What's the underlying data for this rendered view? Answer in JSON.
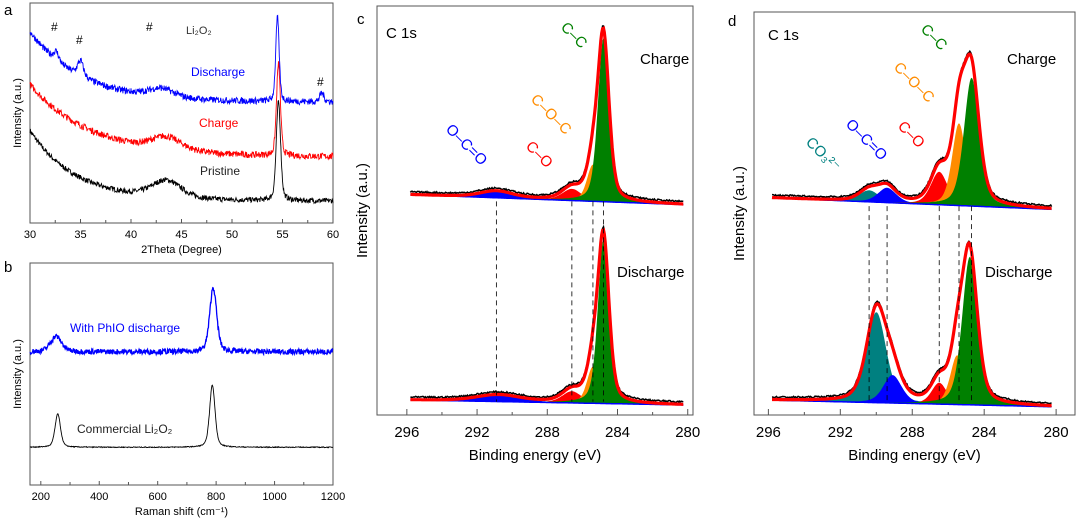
{
  "chart_data": [
    {
      "panel": "a",
      "type": "line",
      "xlabel": "2Theta (Degree)",
      "ylabel": "Intensity (a.u.)",
      "xlim": [
        30,
        60
      ],
      "ylim": [
        0,
        1
      ],
      "xticks": [
        30,
        35,
        40,
        45,
        50,
        55,
        60
      ],
      "grid": false,
      "series": [
        {
          "name": "Pristine",
          "color": "#000000",
          "base": 0.1,
          "decay_amp": 0.32,
          "decay_len": 4.5,
          "noise": 0.012,
          "peaks": [
            {
              "center": 43.5,
              "height": 0.08,
              "width": 3.5
            },
            {
              "center": 54.6,
              "height": 0.45,
              "width": 0.5
            }
          ]
        },
        {
          "name": "Charge",
          "color": "#ff0000",
          "base": 0.3,
          "decay_amp": 0.33,
          "decay_len": 6,
          "noise": 0.015,
          "peaks": [
            {
              "center": 43.5,
              "height": 0.06,
              "width": 3.5
            },
            {
              "center": 54.6,
              "height": 0.42,
              "width": 0.45
            }
          ]
        },
        {
          "name": "Discharge",
          "color": "#0000ff",
          "base": 0.55,
          "decay_amp": 0.32,
          "decay_len": 5,
          "noise": 0.015,
          "peaks": [
            {
              "center": 32.6,
              "height": 0.04,
              "width": 0.6
            },
            {
              "center": 35.0,
              "height": 0.07,
              "width": 0.7
            },
            {
              "center": 43.0,
              "height": 0.04,
              "width": 3
            },
            {
              "center": 54.5,
              "height": 0.38,
              "width": 0.4
            },
            {
              "center": 58.9,
              "height": 0.04,
              "width": 0.5
            }
          ]
        }
      ],
      "annotations": [
        "#",
        "#",
        "#",
        "#",
        "Li₂O₂"
      ]
    },
    {
      "panel": "b",
      "type": "line",
      "xlabel": "Raman shift (cm⁻¹)",
      "ylabel": "Intensity (a.u.)",
      "xlim": [
        163,
        1200
      ],
      "ylim": [
        0,
        1
      ],
      "xticks": [
        200,
        400,
        600,
        800,
        1000,
        1200
      ],
      "grid": false,
      "series": [
        {
          "name": "Commercial Li₂O₂",
          "color": "#000000",
          "base": 0.17,
          "noise": 0.002,
          "peaks": [
            {
              "center": 258,
              "height": 0.15,
              "width": 22
            },
            {
              "center": 787,
              "height": 0.28,
              "width": 22
            }
          ]
        },
        {
          "name": "With PhIO discharge",
          "color": "#0000ff",
          "base": 0.6,
          "noise": 0.012,
          "peaks": [
            {
              "center": 252,
              "height": 0.07,
              "width": 45
            },
            {
              "center": 790,
              "height": 0.29,
              "width": 28
            }
          ]
        }
      ]
    },
    {
      "panel": "c",
      "type": "area",
      "title": "C 1s",
      "xlabel": "Binding energy (eV)",
      "ylabel": "Intensity (a.u.)",
      "xlim": [
        297.7,
        279.7
      ],
      "ylim": [
        0,
        2.45
      ],
      "xticks": [
        296,
        292,
        288,
        284,
        280
      ],
      "grid": false,
      "spectra": [
        {
          "name": "Charge",
          "offset": 1.26,
          "bg_left": 0.06,
          "components": [
            {
              "label": "O–C=O",
              "center": 290.9,
              "height": 0.04,
              "width": 2.2,
              "color": "#0000ff"
            },
            {
              "label": "C–O",
              "center": 286.6,
              "height": 0.07,
              "width": 1.3,
              "color": "#ff0000"
            },
            {
              "label": "C–O–C",
              "center": 285.4,
              "height": 0.22,
              "width": 0.8,
              "color": "#ff8c00"
            },
            {
              "label": "C–C",
              "center": 284.8,
              "height": 0.98,
              "width": 0.75,
              "color": "#008000"
            }
          ]
        },
        {
          "name": "Discharge",
          "offset": 0.06,
          "bg_left": 0.03,
          "components": [
            {
              "label": "O–C=O",
              "center": 290.8,
              "height": 0.04,
              "width": 3.0,
              "color": "#0000ff"
            },
            {
              "label": "C–O",
              "center": 286.6,
              "height": 0.07,
              "width": 1.3,
              "color": "#ff0000"
            },
            {
              "label": "C–O–C",
              "center": 285.4,
              "height": 0.22,
              "width": 0.8,
              "color": "#ff8c00"
            },
            {
              "label": "C–C",
              "center": 284.8,
              "height": 0.98,
              "width": 0.75,
              "color": "#008000"
            }
          ]
        }
      ]
    },
    {
      "panel": "d",
      "type": "area",
      "title": "C 1s",
      "xlabel": "Binding energy (eV)",
      "ylabel": "Intensity (a.u.)",
      "xlim": [
        296.8,
        278.95
      ],
      "ylim": [
        0,
        2.45
      ],
      "xticks": [
        296,
        292,
        288,
        284,
        280
      ],
      "grid": false,
      "spectra": [
        {
          "name": "Charge",
          "offset": 1.25,
          "bg_left": 0.07,
          "components": [
            {
              "label": "CO₃²⁻",
              "center": 290.4,
              "height": 0.07,
              "width": 1.3,
              "color": "#008080"
            },
            {
              "label": "O–C=O",
              "center": 289.4,
              "height": 0.09,
              "width": 1.2,
              "color": "#0000ff"
            },
            {
              "label": "C–O",
              "center": 286.5,
              "height": 0.2,
              "width": 1.1,
              "color": "#ff0000"
            },
            {
              "label": "C–O–C",
              "center": 285.4,
              "height": 0.5,
              "width": 0.9,
              "color": "#ff8c00"
            },
            {
              "label": "C–C",
              "center": 284.7,
              "height": 0.78,
              "width": 1.0,
              "color": "#008000"
            }
          ]
        },
        {
          "name": "Discharge",
          "offset": 0.05,
          "bg_left": 0.04,
          "components": [
            {
              "label": "CO₃²⁻",
              "center": 290.0,
              "height": 0.55,
              "width": 1.3,
              "color": "#008080"
            },
            {
              "label": "O–C=O",
              "center": 289.1,
              "height": 0.17,
              "width": 1.2,
              "color": "#0000ff"
            },
            {
              "label": "C–O",
              "center": 286.5,
              "height": 0.13,
              "width": 1.0,
              "color": "#ff0000"
            },
            {
              "label": "C–O–C",
              "center": 285.5,
              "height": 0.3,
              "width": 0.9,
              "color": "#ff8c00"
            },
            {
              "label": "C–C",
              "center": 284.8,
              "height": 0.9,
              "width": 1.0,
              "color": "#008000"
            }
          ]
        }
      ]
    }
  ],
  "envelope_color": "#ff0000",
  "labels": {
    "panel_a": "a",
    "panel_b": "b",
    "panel_c": "c",
    "panel_d": "d",
    "hash": "#",
    "li2o2": "Li₂O₂",
    "co3": "CO₃²⁻"
  }
}
